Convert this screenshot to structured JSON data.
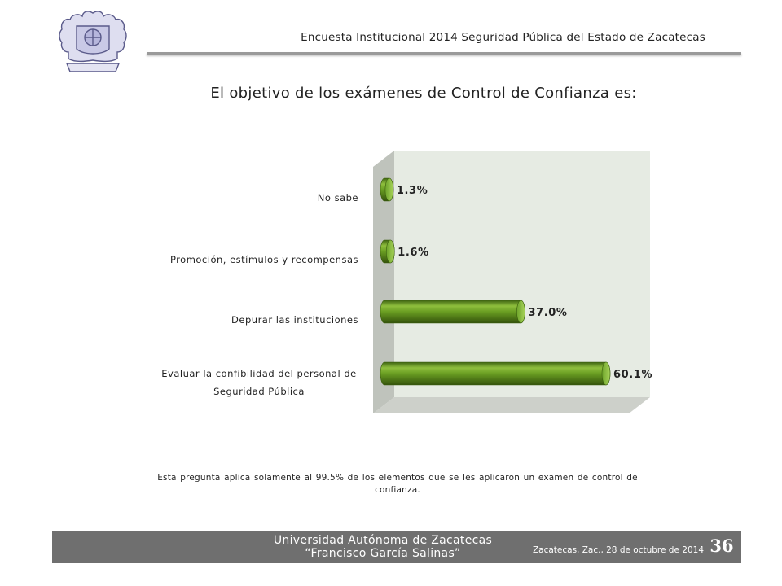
{
  "header": {
    "title": "Encuesta Institucional 2014 Seguridad Pública del Estado de Zacatecas",
    "logo_icon": "university-crest-icon"
  },
  "chart_data": {
    "type": "bar",
    "orientation": "horizontal",
    "style": "3d-cylinder",
    "title": "El objetivo de los exámenes de Control de Confianza es:",
    "categories": [
      "No sabe",
      "Promoción, estímulos y recompensas",
      "Depurar las instituciones",
      "Evaluar la confibilidad del personal de Seguridad Pública"
    ],
    "category_lines": [
      [
        "No sabe"
      ],
      [
        "Promoción, estímulos y recompensas"
      ],
      [
        "Depurar las instituciones"
      ],
      [
        "Evaluar la confibilidad del personal de",
        "Seguridad Pública"
      ]
    ],
    "values": [
      1.3,
      1.6,
      37.0,
      60.1
    ],
    "data_labels": [
      "1.3%",
      "1.6%",
      "37.0%",
      "60.1%"
    ],
    "xlim": [
      0,
      70
    ],
    "grid": false,
    "legend": "none",
    "colors": {
      "bar": "#5e8f1e",
      "bar_top": "#94c444",
      "bar_dark": "#3a5e0e",
      "back_wall": "#e6ebe3",
      "side_wall": "#bfc3bc",
      "floor": "#cdd0ca"
    }
  },
  "note": "Esta pregunta aplica solamente al 99.5% de los elementos que se les aplicaron un examen de control de confianza.",
  "footer": {
    "university": "Universidad Autónoma de Zacatecas",
    "university_sub": "“Francisco García Salinas”",
    "date": "Zacatecas, Zac., 28 de octubre de 2014",
    "page": "36"
  }
}
